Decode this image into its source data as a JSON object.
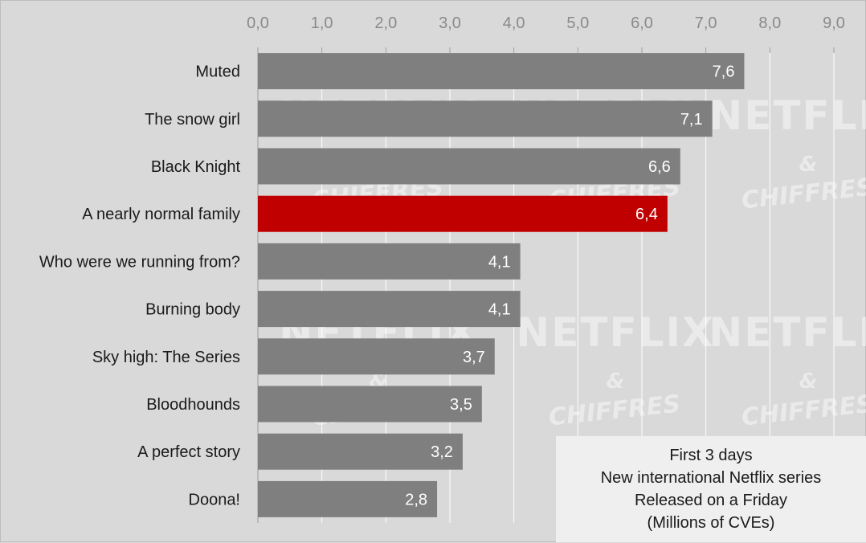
{
  "chart_data": {
    "type": "bar",
    "orientation": "horizontal",
    "categories": [
      "Muted",
      "The snow girl",
      "Black Knight",
      "A nearly normal family",
      "Who were we running from?",
      "Burning body",
      "Sky high: The Series",
      "Bloodhounds",
      "A perfect story",
      "Doona!"
    ],
    "values": [
      7.6,
      7.1,
      6.6,
      6.4,
      4.1,
      4.1,
      3.7,
      3.5,
      3.2,
      2.8
    ],
    "value_labels": [
      "7,6",
      "7,1",
      "6,6",
      "6,4",
      "4,1",
      "4,1",
      "3,7",
      "3,5",
      "3,2",
      "2,8"
    ],
    "highlight_index": 3,
    "xlim": [
      0,
      9
    ],
    "x_ticks": [
      0,
      1,
      2,
      3,
      4,
      5,
      6,
      7,
      8,
      9
    ],
    "x_tick_labels": [
      "0,0",
      "1,0",
      "2,0",
      "3,0",
      "4,0",
      "5,0",
      "6,0",
      "7,0",
      "8,0",
      "9,0"
    ],
    "x_axis_position": "top",
    "grid": true,
    "colors": {
      "bar": "#7f7f7f",
      "highlight": "#c00000",
      "background": "#d9d9d9",
      "grid": "#ffffff"
    },
    "annotation": [
      "First 3 days",
      "New international Netflix series",
      "Released on a Friday",
      "(Millions of CVEs)"
    ],
    "watermark": {
      "brand": "NETFLIX",
      "amp": "&",
      "sub": "CHIFFRES"
    }
  }
}
